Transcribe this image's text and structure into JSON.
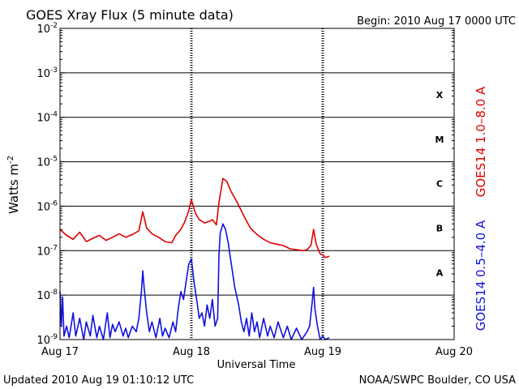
{
  "chart_data": {
    "type": "line",
    "title": "GOES Xray Flux (5 minute data)",
    "begin_label": "Begin:  2010 Aug 17 0000 UTC",
    "ylabel": "Watts m",
    "ylabel_sup": "-2",
    "xlabel": "Universal Time",
    "y_scale": "log",
    "ylim": [
      1e-09,
      0.01
    ],
    "y_ticks": [
      {
        "value": 1e-09,
        "base": "10",
        "exp": "-9"
      },
      {
        "value": 1e-08,
        "base": "10",
        "exp": "-8"
      },
      {
        "value": 1e-07,
        "base": "10",
        "exp": "-7"
      },
      {
        "value": 1e-06,
        "base": "10",
        "exp": "-6"
      },
      {
        "value": 1e-05,
        "base": "10",
        "exp": "-5"
      },
      {
        "value": 0.0001,
        "base": "10",
        "exp": "-4"
      },
      {
        "value": 0.001,
        "base": "10",
        "exp": "-3"
      },
      {
        "value": 0.01,
        "base": "10",
        "exp": "-2"
      }
    ],
    "x_range_days": [
      0,
      3
    ],
    "x_ticks": [
      {
        "day": 0,
        "label": "Aug 17"
      },
      {
        "day": 1,
        "label": "Aug 18"
      },
      {
        "day": 2,
        "label": "Aug 19"
      },
      {
        "day": 3,
        "label": "Aug 20"
      }
    ],
    "flare_classes": [
      {
        "label": "X",
        "value": 0.00032
      },
      {
        "label": "M",
        "value": 3.2e-05
      },
      {
        "label": "C",
        "value": 3.2e-06
      },
      {
        "label": "B",
        "value": 3.2e-07
      },
      {
        "label": "A",
        "value": 3.2e-08
      }
    ],
    "series": [
      {
        "name": "GOES14 1.0–8.0 A",
        "color": "#dd0000",
        "points": [
          [
            0.0,
            3e-07
          ],
          [
            0.05,
            2.2e-07
          ],
          [
            0.1,
            1.8e-07
          ],
          [
            0.15,
            2.6e-07
          ],
          [
            0.2,
            1.6e-07
          ],
          [
            0.25,
            1.9e-07
          ],
          [
            0.3,
            2.2e-07
          ],
          [
            0.35,
            1.7e-07
          ],
          [
            0.4,
            2e-07
          ],
          [
            0.45,
            2.4e-07
          ],
          [
            0.5,
            2e-07
          ],
          [
            0.55,
            2.3e-07
          ],
          [
            0.6,
            2.8e-07
          ],
          [
            0.63,
            7.5e-07
          ],
          [
            0.66,
            3.2e-07
          ],
          [
            0.7,
            2.4e-07
          ],
          [
            0.75,
            2e-07
          ],
          [
            0.8,
            1.6e-07
          ],
          [
            0.85,
            1.5e-07
          ],
          [
            0.88,
            2.2e-07
          ],
          [
            0.92,
            3e-07
          ],
          [
            0.95,
            4.5e-07
          ],
          [
            0.98,
            8e-07
          ],
          [
            1.0,
            1.4e-06
          ],
          [
            1.03,
            7e-07
          ],
          [
            1.06,
            5e-07
          ],
          [
            1.1,
            4.2e-07
          ],
          [
            1.14,
            4.6e-07
          ],
          [
            1.16,
            5e-07
          ],
          [
            1.19,
            3.8e-07
          ],
          [
            1.21,
            1.2e-06
          ],
          [
            1.24,
            4.2e-06
          ],
          [
            1.27,
            3.6e-06
          ],
          [
            1.3,
            2.2e-06
          ],
          [
            1.35,
            1.2e-06
          ],
          [
            1.4,
            6e-07
          ],
          [
            1.45,
            3.2e-07
          ],
          [
            1.5,
            2.3e-07
          ],
          [
            1.55,
            1.8e-07
          ],
          [
            1.6,
            1.5e-07
          ],
          [
            1.65,
            1.4e-07
          ],
          [
            1.7,
            1.3e-07
          ],
          [
            1.75,
            1.1e-07
          ],
          [
            1.8,
            1.05e-07
          ],
          [
            1.85,
            1e-07
          ],
          [
            1.88,
            1.05e-07
          ],
          [
            1.91,
            1.3e-07
          ],
          [
            1.93,
            3e-07
          ],
          [
            1.95,
            1.4e-07
          ],
          [
            1.98,
            8.5e-08
          ],
          [
            2.0,
            8e-08
          ],
          [
            2.02,
            7e-08
          ],
          [
            2.05,
            7.5e-08
          ]
        ]
      },
      {
        "name": "GOES14 0.5–4.0 A",
        "color": "#1111dd",
        "points": [
          [
            0.0,
            1.2e-08
          ],
          [
            0.01,
            2e-09
          ],
          [
            0.02,
            9e-09
          ],
          [
            0.03,
            1.2e-09
          ],
          [
            0.05,
            2e-09
          ],
          [
            0.07,
            1.1e-09
          ],
          [
            0.1,
            4e-09
          ],
          [
            0.12,
            1.2e-09
          ],
          [
            0.15,
            3e-09
          ],
          [
            0.18,
            1e-09
          ],
          [
            0.2,
            2.5e-09
          ],
          [
            0.23,
            1.2e-09
          ],
          [
            0.25,
            3.5e-09
          ],
          [
            0.28,
            1.1e-09
          ],
          [
            0.3,
            2e-09
          ],
          [
            0.33,
            1e-09
          ],
          [
            0.36,
            4e-09
          ],
          [
            0.38,
            1.1e-09
          ],
          [
            0.4,
            2.2e-09
          ],
          [
            0.42,
            1.5e-09
          ],
          [
            0.45,
            2.5e-09
          ],
          [
            0.48,
            1.2e-09
          ],
          [
            0.5,
            1.8e-09
          ],
          [
            0.52,
            1.1e-09
          ],
          [
            0.55,
            2e-09
          ],
          [
            0.58,
            1.5e-09
          ],
          [
            0.6,
            3e-09
          ],
          [
            0.62,
            1.2e-08
          ],
          [
            0.63,
            3.5e-08
          ],
          [
            0.64,
            1.5e-08
          ],
          [
            0.66,
            4e-09
          ],
          [
            0.68,
            1.5e-09
          ],
          [
            0.7,
            2.5e-09
          ],
          [
            0.73,
            1.1e-09
          ],
          [
            0.76,
            3e-09
          ],
          [
            0.78,
            1.2e-09
          ],
          [
            0.8,
            1.8e-09
          ],
          [
            0.83,
            1.1e-09
          ],
          [
            0.86,
            2.5e-09
          ],
          [
            0.88,
            1.5e-09
          ],
          [
            0.9,
            5e-09
          ],
          [
            0.92,
            1.2e-08
          ],
          [
            0.94,
            8e-09
          ],
          [
            0.96,
            2e-08
          ],
          [
            0.98,
            5e-08
          ],
          [
            1.0,
            6.5e-08
          ],
          [
            1.02,
            2e-08
          ],
          [
            1.04,
            8e-09
          ],
          [
            1.06,
            3e-09
          ],
          [
            1.08,
            4e-09
          ],
          [
            1.1,
            2e-09
          ],
          [
            1.12,
            6e-09
          ],
          [
            1.14,
            3e-09
          ],
          [
            1.16,
            8e-09
          ],
          [
            1.18,
            2e-09
          ],
          [
            1.2,
            3e-09
          ],
          [
            1.21,
            8e-08
          ],
          [
            1.22,
            2.5e-07
          ],
          [
            1.24,
            4e-07
          ],
          [
            1.26,
            3e-07
          ],
          [
            1.28,
            1.5e-07
          ],
          [
            1.3,
            6e-08
          ],
          [
            1.33,
            1.5e-08
          ],
          [
            1.36,
            6e-09
          ],
          [
            1.38,
            2.5e-09
          ],
          [
            1.4,
            1.5e-09
          ],
          [
            1.42,
            3e-09
          ],
          [
            1.44,
            1.2e-09
          ],
          [
            1.46,
            4e-09
          ],
          [
            1.48,
            1.5e-09
          ],
          [
            1.5,
            2.5e-09
          ],
          [
            1.52,
            1.1e-09
          ],
          [
            1.55,
            3e-09
          ],
          [
            1.58,
            1.2e-09
          ],
          [
            1.6,
            2e-09
          ],
          [
            1.63,
            1.1e-09
          ],
          [
            1.66,
            2.5e-09
          ],
          [
            1.7,
            1.1e-09
          ],
          [
            1.73,
            2e-09
          ],
          [
            1.76,
            1e-09
          ],
          [
            1.8,
            1.8e-09
          ],
          [
            1.84,
            1e-09
          ],
          [
            1.88,
            1.5e-09
          ],
          [
            1.9,
            2e-09
          ],
          [
            1.92,
            7e-09
          ],
          [
            1.93,
            1.5e-08
          ],
          [
            1.94,
            5e-09
          ],
          [
            1.96,
            2e-09
          ],
          [
            1.98,
            1e-09
          ],
          [
            2.0,
            1.2e-09
          ],
          [
            2.02,
            1e-09
          ],
          [
            2.05,
            1.1e-09
          ]
        ]
      }
    ]
  },
  "footer": {
    "updated": "Updated 2010 Aug 19 01:10:12 UTC",
    "credit": "NOAA/SWPC Boulder, CO USA"
  }
}
